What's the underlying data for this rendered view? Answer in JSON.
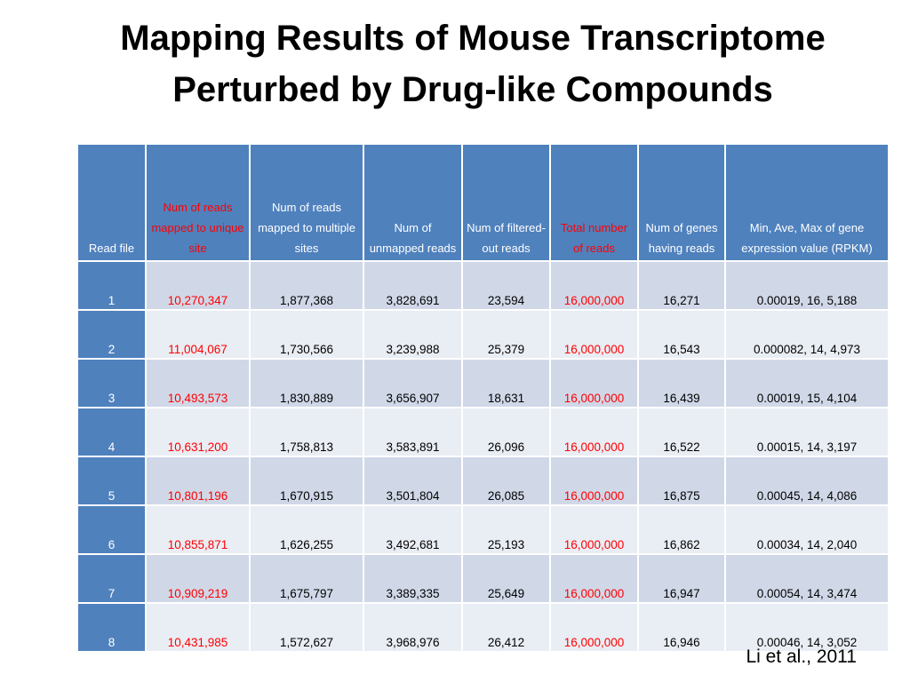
{
  "title": {
    "line1": "Mapping Results of Mouse Transcriptome",
    "line2": "Perturbed by Drug-like Compounds"
  },
  "table": {
    "headers": [
      "Read file",
      "Num of reads mapped to unique site",
      "Num  of reads mapped to multiple sites",
      "Num of unmapped reads",
      "Num of filtered-out reads",
      "Total number of reads",
      "Num of genes having reads",
      "Min,  Ave, Max of gene expression value (RPKM)"
    ],
    "rows": [
      [
        "1",
        "10,270,347",
        "1,877,368",
        "3,828,691",
        "23,594",
        "16,000,000",
        "16,271",
        "0.00019, 16, 5,188"
      ],
      [
        "2",
        "11,004,067",
        "1,730,566",
        "3,239,988",
        "25,379",
        "16,000,000",
        "16,543",
        "0.000082, 14, 4,973"
      ],
      [
        "3",
        "10,493,573",
        "1,830,889",
        "3,656,907",
        "18,631",
        "16,000,000",
        "16,439",
        "0.00019, 15, 4,104"
      ],
      [
        "4",
        "10,631,200",
        "1,758,813",
        "3,583,891",
        "26,096",
        "16,000,000",
        "16,522",
        "0.00015, 14, 3,197"
      ],
      [
        "5",
        "10,801,196",
        "1,670,915",
        "3,501,804",
        "26,085",
        "16,000,000",
        "16,875",
        "0.00045, 14, 4,086"
      ],
      [
        "6",
        "10,855,871",
        "1,626,255",
        "3,492,681",
        "25,193",
        "16,000,000",
        "16,862",
        "0.00034, 14, 2,040"
      ],
      [
        "7",
        "10,909,219",
        "1,675,797",
        "3,389,335",
        "25,649",
        "16,000,000",
        "16,947",
        "0.00054, 14, 3,474"
      ],
      [
        "8",
        "10,431,985",
        "1,572,627",
        "3,968,976",
        "26,412",
        "16,000,000",
        "16,946",
        "0.00046, 14, 3,052"
      ]
    ]
  },
  "citation": "Li et al., 2011",
  "colors": {
    "header_bg": "#4f81bd",
    "header_text": "#ffffff",
    "highlight_red": "#ff0000",
    "row_odd": "#d0d8e8",
    "row_even": "#e9edf4"
  }
}
